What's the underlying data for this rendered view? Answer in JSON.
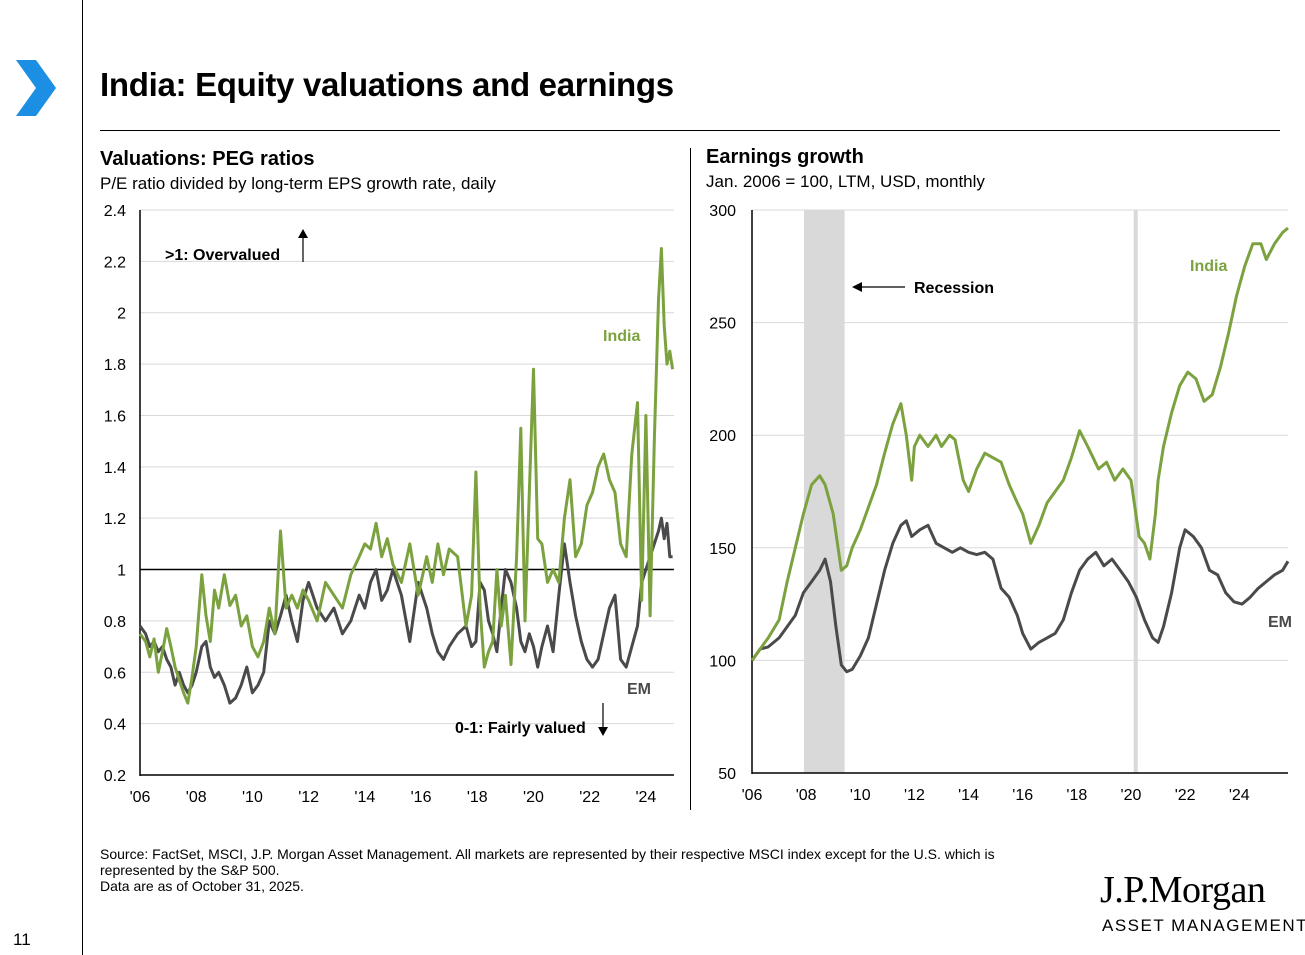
{
  "page": {
    "title": "India: Equity valuations and earnings",
    "page_number": "11",
    "footnote_lines": [
      "Source: FactSet, MSCI, J.P. Morgan Asset Management. All markets are represented by their respective MSCI index except for the U.S. which is",
      "represented by the S&P 500.",
      "Data are as of October 31, 2025."
    ],
    "brand": {
      "logo": "J.P.Morgan",
      "sub": "ASSET MANAGEMENT"
    },
    "colors": {
      "accent": "#1a8fe3",
      "india": "#7ba23f",
      "em": "#4a4a4d",
      "recession": "#d9d9d9",
      "grid": "#d9d9d9"
    }
  },
  "chart_data": [
    {
      "type": "line",
      "title": "Valuations: PEG ratios",
      "subtitle": "P/E ratio divided by long-term EPS growth rate, daily",
      "xlim": [
        2006,
        2025.0
      ],
      "ylim": [
        0.2,
        2.4
      ],
      "yticks": [
        0.2,
        0.4,
        0.6,
        0.8,
        1,
        1.2,
        1.4,
        1.6,
        1.8,
        2,
        2.2,
        2.4
      ],
      "ytick_labels": [
        "0.2",
        "0.4",
        "0.6",
        "0.8",
        "1",
        "1.2",
        "1.4",
        "1.6",
        "1.8",
        "2",
        "2.2",
        "2.4"
      ],
      "xticks": [
        2006,
        2008,
        2010,
        2012,
        2014,
        2016,
        2018,
        2020,
        2022,
        2024
      ],
      "xtick_labels": [
        "'06",
        "'08",
        "'10",
        "'12",
        "'14",
        "'16",
        "'18",
        "'20",
        "'22",
        "'24"
      ],
      "reference_line": 1,
      "annotations": {
        "overvalued": ">1: Overvalued",
        "fair": "0-1: Fairly valued"
      },
      "series": [
        {
          "name": "India",
          "label": "India",
          "x": [
            2006.0,
            2006.2,
            2006.35,
            2006.5,
            2006.65,
            2006.8,
            2006.95,
            2007.1,
            2007.25,
            2007.4,
            2007.55,
            2007.7,
            2007.85,
            2008.0,
            2008.2,
            2008.35,
            2008.5,
            2008.65,
            2008.8,
            2009.0,
            2009.2,
            2009.4,
            2009.6,
            2009.8,
            2010.0,
            2010.2,
            2010.4,
            2010.6,
            2010.8,
            2011.0,
            2011.2,
            2011.4,
            2011.6,
            2011.8,
            2012.0,
            2012.3,
            2012.6,
            2012.9,
            2013.2,
            2013.5,
            2013.8,
            2014.0,
            2014.2,
            2014.4,
            2014.6,
            2014.8,
            2015.0,
            2015.3,
            2015.6,
            2015.9,
            2016.2,
            2016.4,
            2016.6,
            2016.8,
            2017.0,
            2017.3,
            2017.6,
            2017.8,
            2017.95,
            2018.1,
            2018.25,
            2018.4,
            2018.55,
            2018.7,
            2018.85,
            2019.0,
            2019.2,
            2019.4,
            2019.55,
            2019.7,
            2019.85,
            2020.0,
            2020.15,
            2020.3,
            2020.5,
            2020.7,
            2020.9,
            2021.1,
            2021.3,
            2021.5,
            2021.7,
            2021.9,
            2022.1,
            2022.3,
            2022.5,
            2022.7,
            2022.9,
            2023.1,
            2023.3,
            2023.5,
            2023.7,
            2023.85,
            2024.0,
            2024.15,
            2024.3,
            2024.45,
            2024.55,
            2024.65,
            2024.75,
            2024.85,
            2024.95
          ],
          "values": [
            0.75,
            0.72,
            0.66,
            0.73,
            0.6,
            0.68,
            0.77,
            0.7,
            0.62,
            0.57,
            0.52,
            0.48,
            0.58,
            0.7,
            0.98,
            0.82,
            0.72,
            0.92,
            0.85,
            0.98,
            0.86,
            0.9,
            0.78,
            0.82,
            0.7,
            0.66,
            0.72,
            0.85,
            0.75,
            1.15,
            0.85,
            0.9,
            0.85,
            0.92,
            0.88,
            0.8,
            0.95,
            0.9,
            0.85,
            0.98,
            1.05,
            1.1,
            1.08,
            1.18,
            1.05,
            1.12,
            1.02,
            0.95,
            1.1,
            0.9,
            1.05,
            0.95,
            1.1,
            0.98,
            1.08,
            1.05,
            0.78,
            0.9,
            1.38,
            0.85,
            0.62,
            0.68,
            0.72,
            1.0,
            0.78,
            0.9,
            0.63,
            1.05,
            1.55,
            0.8,
            1.3,
            1.78,
            1.12,
            1.1,
            0.95,
            1.0,
            0.95,
            1.2,
            1.35,
            1.05,
            1.1,
            1.25,
            1.3,
            1.4,
            1.45,
            1.35,
            1.3,
            1.1,
            1.05,
            1.45,
            1.65,
            0.88,
            1.6,
            0.82,
            1.5,
            2.05,
            2.25,
            1.95,
            1.8,
            1.85,
            1.78
          ]
        },
        {
          "name": "EM",
          "label": "EM",
          "x": [
            2006.0,
            2006.2,
            2006.35,
            2006.5,
            2006.65,
            2006.8,
            2006.95,
            2007.1,
            2007.25,
            2007.4,
            2007.55,
            2007.7,
            2007.85,
            2008.0,
            2008.2,
            2008.35,
            2008.5,
            2008.65,
            2008.8,
            2009.0,
            2009.2,
            2009.4,
            2009.6,
            2009.8,
            2010.0,
            2010.2,
            2010.4,
            2010.6,
            2010.8,
            2011.0,
            2011.2,
            2011.4,
            2011.6,
            2011.8,
            2012.0,
            2012.3,
            2012.6,
            2012.9,
            2013.2,
            2013.5,
            2013.8,
            2014.0,
            2014.2,
            2014.4,
            2014.6,
            2014.8,
            2015.0,
            2015.3,
            2015.6,
            2015.9,
            2016.2,
            2016.4,
            2016.6,
            2016.8,
            2017.0,
            2017.3,
            2017.6,
            2017.8,
            2017.95,
            2018.1,
            2018.25,
            2018.4,
            2018.55,
            2018.7,
            2018.85,
            2019.0,
            2019.2,
            2019.4,
            2019.55,
            2019.7,
            2019.85,
            2020.0,
            2020.15,
            2020.3,
            2020.5,
            2020.7,
            2020.9,
            2021.1,
            2021.3,
            2021.5,
            2021.7,
            2021.9,
            2022.1,
            2022.3,
            2022.5,
            2022.7,
            2022.9,
            2023.1,
            2023.3,
            2023.5,
            2023.7,
            2023.85,
            2024.0,
            2024.15,
            2024.3,
            2024.45,
            2024.55,
            2024.65,
            2024.75,
            2024.85,
            2024.95
          ],
          "values": [
            0.78,
            0.75,
            0.7,
            0.72,
            0.68,
            0.7,
            0.65,
            0.62,
            0.55,
            0.6,
            0.55,
            0.52,
            0.55,
            0.6,
            0.7,
            0.72,
            0.62,
            0.58,
            0.6,
            0.55,
            0.48,
            0.5,
            0.55,
            0.62,
            0.52,
            0.55,
            0.6,
            0.8,
            0.75,
            0.82,
            0.9,
            0.8,
            0.72,
            0.88,
            0.95,
            0.85,
            0.8,
            0.85,
            0.75,
            0.8,
            0.9,
            0.85,
            0.95,
            1.0,
            0.88,
            0.92,
            1.0,
            0.9,
            0.72,
            0.95,
            0.85,
            0.75,
            0.68,
            0.65,
            0.7,
            0.75,
            0.78,
            0.7,
            0.72,
            0.95,
            0.92,
            0.8,
            0.75,
            0.68,
            0.85,
            1.0,
            0.95,
            0.85,
            0.72,
            0.68,
            0.75,
            0.7,
            0.62,
            0.7,
            0.78,
            0.68,
            0.9,
            1.1,
            0.95,
            0.82,
            0.72,
            0.65,
            0.62,
            0.65,
            0.75,
            0.85,
            0.9,
            0.65,
            0.62,
            0.7,
            0.78,
            0.95,
            1.0,
            1.05,
            1.1,
            1.15,
            1.2,
            1.12,
            1.18,
            1.05,
            1.05
          ]
        }
      ]
    },
    {
      "type": "line",
      "title": "Earnings growth",
      "subtitle": "Jan. 2006 = 100, LTM, USD, monthly",
      "xlim": [
        2006,
        2025.8
      ],
      "ylim": [
        50,
        300
      ],
      "yticks": [
        50,
        100,
        150,
        200,
        250,
        300
      ],
      "ytick_labels": [
        "50",
        "100",
        "150",
        "200",
        "250",
        "300"
      ],
      "xticks": [
        2006,
        2008,
        2010,
        2012,
        2014,
        2016,
        2018,
        2020,
        2022,
        2024
      ],
      "xtick_labels": [
        "'06",
        "'08",
        "'10",
        "'12",
        "'14",
        "'16",
        "'18",
        "'20",
        "'22",
        "'24"
      ],
      "recessions": [
        [
          2007.92,
          2009.42
        ],
        [
          2020.1,
          2020.25
        ]
      ],
      "recession_label": "Recession",
      "series": [
        {
          "name": "India",
          "label": "India",
          "x": [
            2006.0,
            2006.3,
            2006.6,
            2007.0,
            2007.3,
            2007.6,
            2007.9,
            2008.2,
            2008.5,
            2008.7,
            2009.0,
            2009.3,
            2009.5,
            2009.7,
            2010.0,
            2010.3,
            2010.6,
            2010.9,
            2011.2,
            2011.5,
            2011.7,
            2011.9,
            2012.0,
            2012.2,
            2012.5,
            2012.8,
            2013.0,
            2013.3,
            2013.5,
            2013.8,
            2014.0,
            2014.3,
            2014.6,
            2014.9,
            2015.2,
            2015.5,
            2015.8,
            2016.0,
            2016.3,
            2016.6,
            2016.9,
            2017.2,
            2017.5,
            2017.8,
            2018.1,
            2018.4,
            2018.6,
            2018.8,
            2019.1,
            2019.4,
            2019.7,
            2020.0,
            2020.3,
            2020.5,
            2020.7,
            2020.9,
            2021.0,
            2021.2,
            2021.5,
            2021.8,
            2022.1,
            2022.4,
            2022.7,
            2023.0,
            2023.3,
            2023.6,
            2023.9,
            2024.2,
            2024.5,
            2024.8,
            2025.0,
            2025.3,
            2025.6,
            2025.8
          ],
          "values": [
            100,
            105,
            110,
            118,
            135,
            150,
            165,
            178,
            182,
            178,
            165,
            140,
            142,
            150,
            158,
            168,
            178,
            192,
            205,
            214,
            200,
            180,
            195,
            200,
            195,
            200,
            195,
            200,
            198,
            180,
            175,
            185,
            192,
            190,
            188,
            178,
            170,
            165,
            152,
            160,
            170,
            175,
            180,
            190,
            202,
            195,
            190,
            185,
            188,
            180,
            185,
            180,
            155,
            152,
            145,
            165,
            180,
            195,
            210,
            222,
            228,
            225,
            215,
            218,
            230,
            245,
            262,
            275,
            285,
            285,
            278,
            285,
            290,
            292
          ]
        },
        {
          "name": "EM",
          "label": "EM",
          "x": [
            2006.0,
            2006.3,
            2006.6,
            2007.0,
            2007.3,
            2007.6,
            2007.9,
            2008.2,
            2008.5,
            2008.7,
            2008.9,
            2009.1,
            2009.3,
            2009.5,
            2009.7,
            2010.0,
            2010.3,
            2010.6,
            2010.9,
            2011.2,
            2011.5,
            2011.7,
            2011.9,
            2012.2,
            2012.5,
            2012.8,
            2013.1,
            2013.4,
            2013.7,
            2014.0,
            2014.3,
            2014.6,
            2014.9,
            2015.2,
            2015.5,
            2015.8,
            2016.0,
            2016.3,
            2016.6,
            2016.9,
            2017.2,
            2017.5,
            2017.8,
            2018.1,
            2018.4,
            2018.7,
            2019.0,
            2019.3,
            2019.6,
            2019.9,
            2020.2,
            2020.5,
            2020.8,
            2021.0,
            2021.2,
            2021.5,
            2021.8,
            2022.0,
            2022.3,
            2022.6,
            2022.9,
            2023.2,
            2023.5,
            2023.8,
            2024.1,
            2024.4,
            2024.7,
            2025.0,
            2025.3,
            2025.6,
            2025.8
          ],
          "values": [
            100,
            105,
            106,
            110,
            115,
            120,
            130,
            135,
            140,
            145,
            135,
            115,
            98,
            95,
            96,
            102,
            110,
            125,
            140,
            152,
            160,
            162,
            155,
            158,
            160,
            152,
            150,
            148,
            150,
            148,
            147,
            148,
            145,
            132,
            128,
            120,
            112,
            105,
            108,
            110,
            112,
            118,
            130,
            140,
            145,
            148,
            142,
            145,
            140,
            135,
            128,
            118,
            110,
            108,
            115,
            130,
            150,
            158,
            155,
            150,
            140,
            138,
            130,
            126,
            125,
            128,
            132,
            135,
            138,
            140,
            144
          ]
        }
      ]
    }
  ]
}
